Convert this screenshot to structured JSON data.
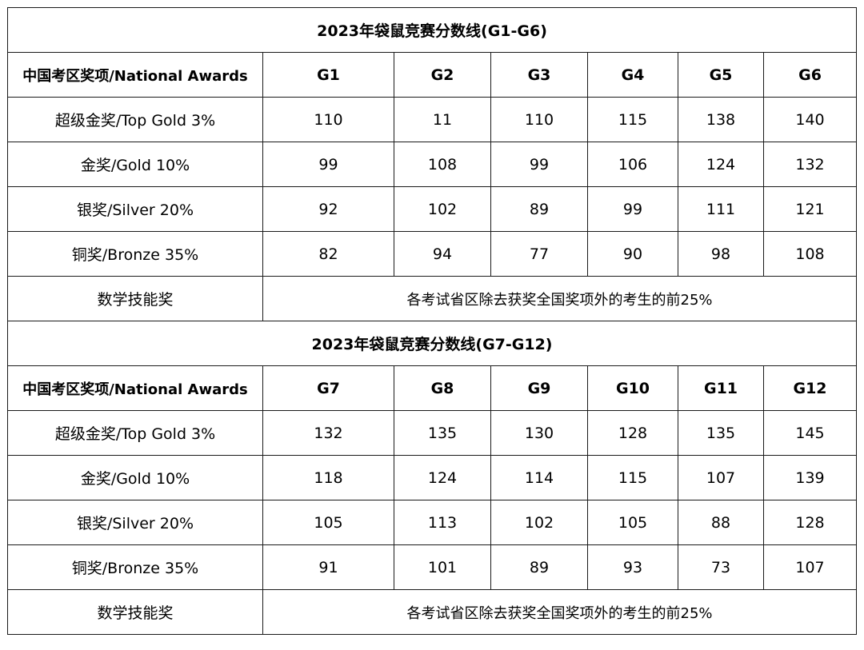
{
  "table1": {
    "title": "2023年袋鼠竞赛分数线(G1-G6)",
    "header": [
      "中国考区奖项/National Awards",
      "G1",
      "G2",
      "G3",
      "G4",
      "G5",
      "G6"
    ],
    "rows": [
      {
        "label": "超级金奖/Top Gold 3%",
        "values": [
          "110",
          "11",
          "110",
          "115",
          "138",
          "140"
        ]
      },
      {
        "label": "金奖/Gold 10%",
        "values": [
          "99",
          "108",
          "99",
          "106",
          "124",
          "132"
        ]
      },
      {
        "label": "银奖/Silver 20%",
        "values": [
          "92",
          "102",
          "89",
          "99",
          "111",
          "121"
        ]
      },
      {
        "label": "铜奖/Bronze 35%",
        "values": [
          "82",
          "94",
          "77",
          "90",
          "98",
          "108"
        ]
      }
    ],
    "skill_label": "数学技能奖",
    "skill_note": "各考试省区除去获奖全国奖项外的考生的前25%"
  },
  "table2": {
    "title": "2023年袋鼠竞赛分数线(G7-G12)",
    "header": [
      "中国考区奖项/National Awards",
      "G7",
      "G8",
      "G9",
      "G10",
      "G11",
      "G12"
    ],
    "rows": [
      {
        "label": "超级金奖/Top Gold 3%",
        "values": [
          "132",
          "135",
          "130",
          "128",
          "135",
          "145"
        ]
      },
      {
        "label": "金奖/Gold 10%",
        "values": [
          "118",
          "124",
          "114",
          "115",
          "107",
          "139"
        ]
      },
      {
        "label": "银奖/Silver 20%",
        "values": [
          "105",
          "113",
          "102",
          "105",
          "88",
          "128"
        ]
      },
      {
        "label": "铜奖/Bronze 35%",
        "values": [
          "91",
          "101",
          "89",
          "93",
          "73",
          "107"
        ]
      }
    ],
    "skill_label": "数学技能奖",
    "skill_note": "各考试省区除去获奖全国奖项外的考生的前25%"
  }
}
